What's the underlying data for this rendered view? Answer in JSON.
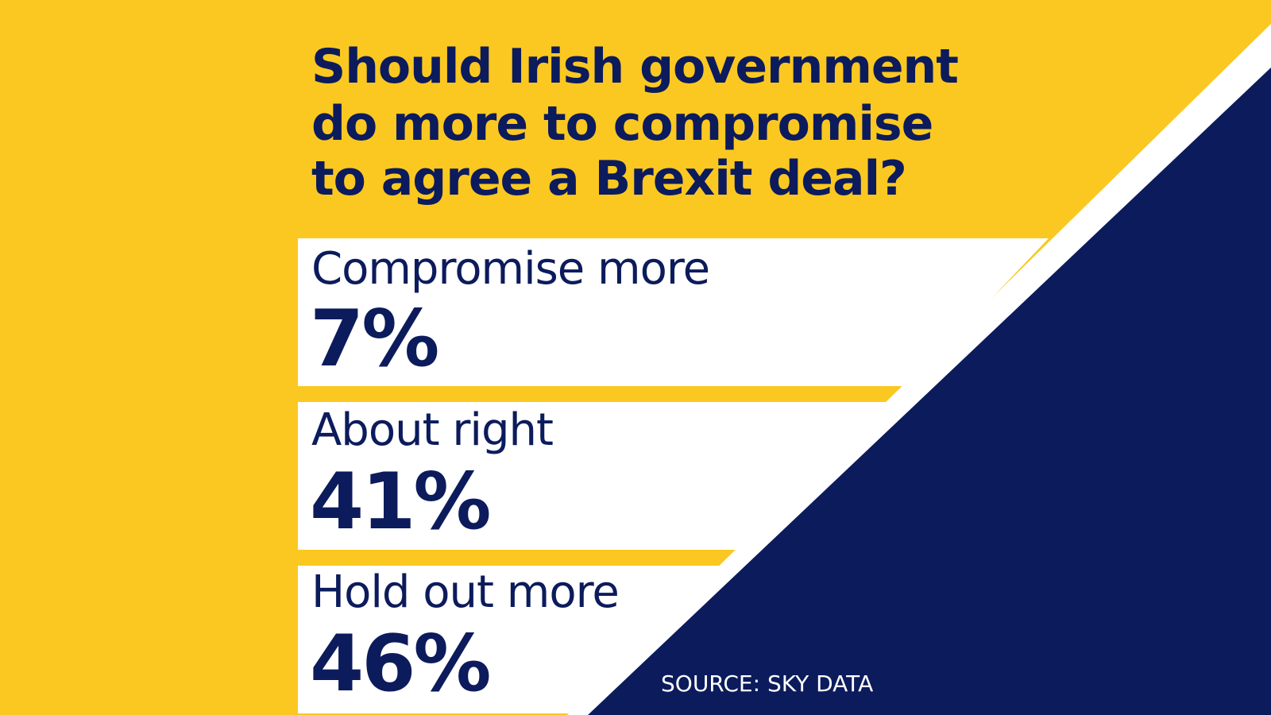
{
  "colors": {
    "yellow": "#fbc821",
    "navy": "#0c1b5c",
    "white": "#ffffff"
  },
  "chart_data": {
    "type": "bar",
    "title_lines": [
      "Should Irish government",
      "do more to compromise",
      "to agree a Brexit deal?"
    ],
    "categories": [
      "Compromise more",
      "About right",
      "Hold out more"
    ],
    "values": [
      7,
      41,
      46
    ],
    "value_labels": [
      "7%",
      "41%",
      "46%"
    ],
    "source": "SOURCE: SKY DATA"
  }
}
